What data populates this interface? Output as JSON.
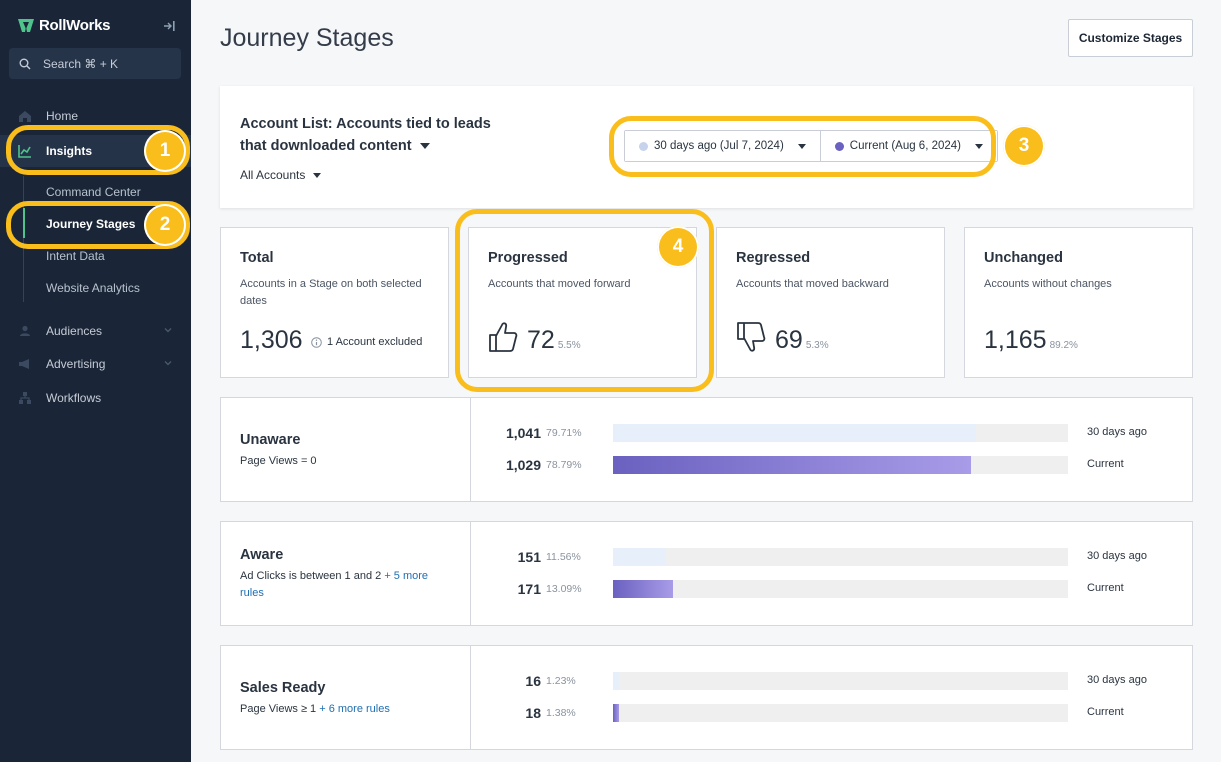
{
  "brand": {
    "name": "RollWorks"
  },
  "sidebar": {
    "search_label": "Search ⌘ + K",
    "home": "Home",
    "insights": "Insights",
    "sub_items": [
      "Command Center",
      "Journey Stages",
      "Intent Data",
      "Website Analytics"
    ],
    "audiences": "Audiences",
    "advertising": "Advertising",
    "workflows": "Workflows"
  },
  "callouts": [
    "1",
    "2",
    "3",
    "4"
  ],
  "header": {
    "title": "Journey Stages",
    "customize_label": "Customize Stages"
  },
  "filters": {
    "account_list": "Account List: Accounts tied to leads that downloaded content",
    "all_accounts": "All Accounts",
    "date_past": "30 days ago (Jul 7, 2024)",
    "date_current": "Current (Aug 6, 2024)",
    "date_past_color": "#c7d3ec",
    "date_current_color": "#6a61c0"
  },
  "stats": {
    "total": {
      "title": "Total",
      "desc": "Accounts in a Stage on both selected dates",
      "value": "1,306",
      "note": "1 Account excluded"
    },
    "progressed": {
      "title": "Progressed",
      "desc": "Accounts that moved forward",
      "value": "72",
      "pct": "5.5%"
    },
    "regressed": {
      "title": "Regressed",
      "desc": "Accounts that moved backward",
      "value": "69",
      "pct": "5.3%"
    },
    "unchanged": {
      "title": "Unchanged",
      "desc": "Accounts without changes",
      "value": "1,165",
      "pct": "89.2%"
    }
  },
  "stages": [
    {
      "name": "Unaware",
      "rule": "Page Views = 0",
      "more": "",
      "past": {
        "value": "1,041",
        "pct": "79.71%",
        "fraction": 0.7971,
        "label": "30 days ago"
      },
      "current": {
        "value": "1,029",
        "pct": "78.79%",
        "fraction": 0.7879,
        "label": "Current"
      }
    },
    {
      "name": "Aware",
      "rule": "Ad Clicks is between 1 and 2",
      "more": "+ 5 more rules",
      "past": {
        "value": "151",
        "pct": "11.56%",
        "fraction": 0.1156,
        "label": "30 days ago"
      },
      "current": {
        "value": "171",
        "pct": "13.09%",
        "fraction": 0.1309,
        "label": "Current"
      }
    },
    {
      "name": "Sales Ready",
      "rule": "Page Views ≥ 1",
      "more": "+ 6 more rules",
      "past": {
        "value": "16",
        "pct": "1.23%",
        "fraction": 0.0123,
        "label": "30 days ago"
      },
      "current": {
        "value": "18",
        "pct": "1.38%",
        "fraction": 0.0138,
        "label": "Current"
      }
    }
  ]
}
